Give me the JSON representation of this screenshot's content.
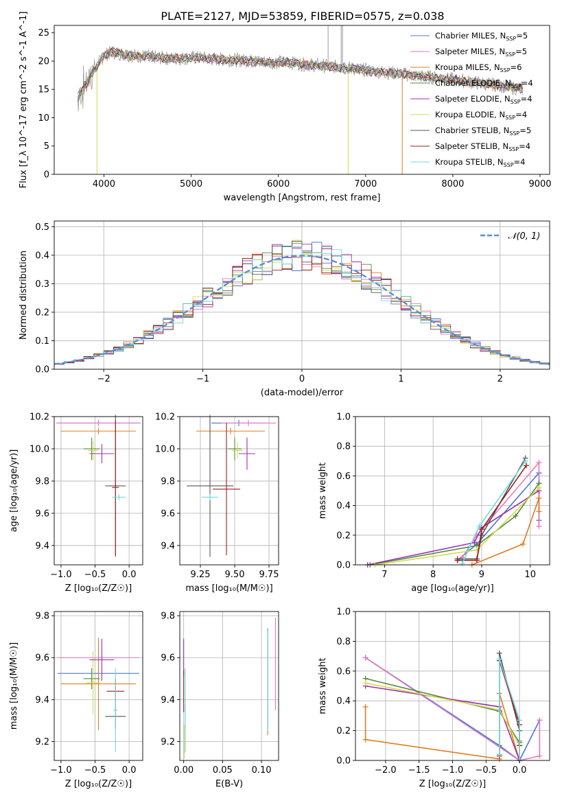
{
  "figure_title": "PLATE=2127, MJD=53859, FIBERID=0575, z=0.038",
  "colors": {
    "Chabrier MILES": "#4878d0",
    "Salpeter MILES": "#e377c2",
    "Kroupa MILES": "#e07b1f",
    "Chabrier ELODIE": "#4a8c3f",
    "Salpeter ELODIE": "#9b2fae",
    "Kroupa ELODIE": "#d7d84a",
    "Chabrier STELIB": "#555555",
    "Salpeter STELIB": "#a01c1c",
    "Kroupa STELIB": "#6fd8e0"
  },
  "chart_data": [
    {
      "type": "line",
      "title": "PLATE=2127, MJD=53859, FIBERID=0575, z=0.038",
      "xlabel": "wavelength [Angstrom, rest frame]",
      "ylabel": "Flux [f_λ 10^-17 erg cm^-2 s^-1 A^-1]",
      "xlim": [
        3430,
        9110
      ],
      "ylim": [
        0,
        26.3
      ],
      "xticks": [
        "4000",
        "5000",
        "6000",
        "7000",
        "8000",
        "9000"
      ],
      "yticks": [
        "0",
        "5",
        "10",
        "15",
        "20",
        "25"
      ],
      "grid": false,
      "legend_position": "top-right",
      "legend": [
        {
          "name": "Chabrier MILES, N",
          "sub": "SSP",
          "suffix": "=5"
        },
        {
          "name": "Salpeter MILES, N",
          "sub": "SSP",
          "suffix": "=5"
        },
        {
          "name": "Kroupa MILES, N",
          "sub": "SSP",
          "suffix": "=6"
        },
        {
          "name": "Chabrier ELODIE, N",
          "sub": "SSP",
          "suffix": "=4"
        },
        {
          "name": "Salpeter ELODIE, N",
          "sub": "SSP",
          "suffix": "=4"
        },
        {
          "name": "Kroupa ELODIE, N",
          "sub": "SSP",
          "suffix": "=4"
        },
        {
          "name": "Chabrier STELIB, N",
          "sub": "SSP",
          "suffix": "=5"
        },
        {
          "name": "Salpeter STELIB, N",
          "sub": "SSP",
          "suffix": "=4"
        },
        {
          "name": "Kroupa STELIB, N",
          "sub": "SSP",
          "suffix": "=4"
        }
      ],
      "continuum_x": [
        3700,
        3850,
        4000,
        4100,
        4300,
        4500,
        4700,
        4900,
        5100,
        5300,
        5500,
        5700,
        5900,
        6100,
        6300,
        6500,
        6700,
        6900,
        7100,
        7300,
        7500,
        7700,
        7900,
        8100,
        8300,
        8500,
        8700,
        8800
      ],
      "continuum_y": [
        13.5,
        17.5,
        21.0,
        21.6,
        21.0,
        20.8,
        20.5,
        20.5,
        20.6,
        20.3,
        20.2,
        20.0,
        19.8,
        19.8,
        19.4,
        19.2,
        18.9,
        18.6,
        18.2,
        17.9,
        17.6,
        17.2,
        16.9,
        16.5,
        16.1,
        15.8,
        15.3,
        15.1
      ],
      "drops": [
        {
          "series": "Kroupa ELODIE",
          "x": 3920
        },
        {
          "series": "Kroupa ELODIE",
          "x": 6800
        },
        {
          "series": "Kroupa MILES",
          "x": 7420
        }
      ]
    },
    {
      "type": "histogram",
      "xlabel": "(data-model)/error",
      "ylabel": "Normed distribution",
      "xlim": [
        -2.5,
        2.5
      ],
      "ylim": [
        0,
        0.52
      ],
      "xticks": [
        "−2",
        "−1",
        "0",
        "1",
        "2"
      ],
      "yticks": [
        "0.0",
        "0.1",
        "0.2",
        "0.3",
        "0.4",
        "0.5"
      ],
      "grid": true,
      "legend_position": "top-right",
      "reference_curve": {
        "label": "𝒩(0, 1)",
        "color": "#5b8fd0",
        "mean": 0,
        "sigma": 1
      },
      "bin_width": 0.1
    },
    {
      "type": "errorbar",
      "xlabel": "Z [log₁₀(Z/Z☉)]",
      "ylabel": "age  [log₁₀(age/yr)]",
      "xlim": [
        -1.1,
        0.2
      ],
      "ylim": [
        9.28,
        10.2
      ],
      "xticks": [
        "−1.0",
        "−0.5",
        "0.0"
      ],
      "yticks": [
        "9.4",
        "9.6",
        "9.8",
        "10.0",
        "10.2"
      ],
      "grid": true,
      "points": [
        {
          "series": "Chabrier MILES",
          "x": -0.45,
          "y": 10.16,
          "xerr": 0.6,
          "yerr": 0.02
        },
        {
          "series": "Salpeter MILES",
          "x": -0.45,
          "y": 10.16,
          "xerr": 0.62,
          "yerr": 0.02
        },
        {
          "series": "Kroupa MILES",
          "x": -0.45,
          "y": 10.11,
          "xerr": 0.55,
          "yerr": 0.02
        },
        {
          "series": "Chabrier ELODIE",
          "x": -0.55,
          "y": 10.0,
          "xerr": 0.12,
          "yerr": 0.07
        },
        {
          "series": "Kroupa ELODIE",
          "x": -0.53,
          "y": 9.99,
          "xerr": 0.08,
          "yerr": 0.06
        },
        {
          "series": "Salpeter ELODIE",
          "x": -0.4,
          "y": 9.97,
          "xerr": 0.18,
          "yerr": 0.06
        },
        {
          "series": "Chabrier STELIB",
          "x": -0.2,
          "y": 9.77,
          "xerr": 0.15,
          "yerr": 0.44
        },
        {
          "series": "Salpeter STELIB",
          "x": -0.2,
          "y": 9.76,
          "xerr": 0.05,
          "yerr": 0.42
        },
        {
          "series": "Kroupa STELIB",
          "x": -0.15,
          "y": 9.7,
          "xerr": 0.1,
          "yerr": 0.02
        }
      ]
    },
    {
      "type": "errorbar",
      "xlabel": "mass [log₁₀(M/M☉)]",
      "xlim": [
        9.1,
        9.82
      ],
      "ylim": [
        9.28,
        10.2
      ],
      "xticks": [
        "9.25",
        "9.50",
        "9.75"
      ],
      "yticks": [
        "9.4",
        "9.6",
        "9.8",
        "10.0",
        "10.2"
      ],
      "grid": true,
      "points": [
        {
          "series": "Chabrier MILES",
          "x": 9.53,
          "y": 10.16,
          "xerr": 0.2,
          "yerr": 0.02
        },
        {
          "series": "Salpeter MILES",
          "x": 9.6,
          "y": 10.16,
          "xerr": 0.2,
          "yerr": 0.02
        },
        {
          "series": "Kroupa MILES",
          "x": 9.47,
          "y": 10.11,
          "xerr": 0.25,
          "yerr": 0.02
        },
        {
          "series": "Chabrier ELODIE",
          "x": 9.5,
          "y": 10.0,
          "xerr": 0.05,
          "yerr": 0.07
        },
        {
          "series": "Kroupa ELODIE",
          "x": 9.52,
          "y": 9.99,
          "xerr": 0.04,
          "yerr": 0.05
        },
        {
          "series": "Salpeter ELODIE",
          "x": 9.59,
          "y": 9.97,
          "xerr": 0.06,
          "yerr": 0.1
        },
        {
          "series": "Chabrier STELIB",
          "x": 9.32,
          "y": 9.77,
          "xerr": 0.17,
          "yerr": 0.44
        },
        {
          "series": "Salpeter STELIB",
          "x": 9.44,
          "y": 9.75,
          "xerr": 0.1,
          "yerr": 0.41
        },
        {
          "series": "Kroupa STELIB",
          "x": 9.32,
          "y": 9.7,
          "xerr": 0.06,
          "yerr": 0.02
        }
      ]
    },
    {
      "type": "line",
      "xlabel": "age  [log₁₀(age/yr)]",
      "ylabel": "mass weight",
      "xlim": [
        6.4,
        10.4
      ],
      "ylim": [
        0,
        1
      ],
      "xticks": [
        "7",
        "8",
        "9",
        "10"
      ],
      "yticks": [
        "0.0",
        "0.2",
        "0.4",
        "0.6",
        "0.8",
        "1.0"
      ],
      "grid": true,
      "series": [
        {
          "name": "Chabrier MILES",
          "x": [
            8.5,
            8.9,
            10.18,
            10.18
          ],
          "y": [
            0.03,
            0.14,
            0.62,
            0.3
          ]
        },
        {
          "name": "Salpeter MILES",
          "x": [
            8.6,
            8.9,
            10.18,
            10.18
          ],
          "y": [
            0.05,
            0.2,
            0.69,
            0.26
          ]
        },
        {
          "name": "Kroupa MILES",
          "x": [
            8.8,
            9.85,
            10.18,
            10.18
          ],
          "y": [
            0.0,
            0.14,
            0.45,
            0.36
          ]
        },
        {
          "name": "Chabrier ELODIE",
          "x": [
            6.7,
            8.9,
            9.7,
            10.18
          ],
          "y": [
            0.0,
            0.13,
            0.33,
            0.55
          ]
        },
        {
          "name": "Salpeter ELODIE",
          "x": [
            6.65,
            8.85,
            9.0,
            10.18
          ],
          "y": [
            0.0,
            0.15,
            0.25,
            0.5
          ]
        },
        {
          "name": "Kroupa ELODIE",
          "x": [
            6.8,
            8.9,
            10.18
          ],
          "y": [
            0.0,
            0.1,
            0.52
          ]
        },
        {
          "name": "Chabrier STELIB",
          "x": [
            8.5,
            8.9,
            9.0,
            9.9
          ],
          "y": [
            0.04,
            0.04,
            0.2,
            0.72
          ]
        },
        {
          "name": "Salpeter STELIB",
          "x": [
            8.5,
            8.9,
            9.0,
            9.92
          ],
          "y": [
            0.03,
            0.03,
            0.24,
            0.67
          ]
        },
        {
          "name": "Kroupa STELIB",
          "x": [
            8.6,
            8.95,
            9.9
          ],
          "y": [
            0.01,
            0.26,
            0.7
          ]
        }
      ]
    },
    {
      "type": "errorbar",
      "xlabel": "Z [log₁₀(Z/Z☉)]",
      "ylabel": "mass [log₁₀(M/M☉)]",
      "xlim": [
        -1.1,
        0.2
      ],
      "ylim": [
        9.11,
        9.82
      ],
      "xticks": [
        "−1.0",
        "−0.5",
        "0.0"
      ],
      "yticks": [
        "9.2",
        "9.4",
        "9.6",
        "9.8"
      ],
      "grid": true,
      "points": [
        {
          "series": "Chabrier MILES",
          "x": -0.45,
          "y": 9.525,
          "xerr": 0.6,
          "yerr": 0.02
        },
        {
          "series": "Salpeter MILES",
          "x": -0.45,
          "y": 9.6,
          "xerr": 0.6,
          "yerr": 0.02
        },
        {
          "series": "Kroupa MILES",
          "x": -0.45,
          "y": 9.475,
          "xerr": 0.55,
          "yerr": 0.22
        },
        {
          "series": "Chabrier ELODIE",
          "x": -0.55,
          "y": 9.5,
          "xerr": 0.12,
          "yerr": 0.05
        },
        {
          "series": "Kroupa ELODIE",
          "x": -0.53,
          "y": 9.48,
          "xerr": 0.1,
          "yerr": 0.15
        },
        {
          "series": "Salpeter ELODIE",
          "x": -0.4,
          "y": 9.59,
          "xerr": 0.18,
          "yerr": 0.1
        },
        {
          "series": "Chabrier STELIB",
          "x": -0.2,
          "y": 9.32,
          "xerr": 0.15,
          "yerr": 0.06
        },
        {
          "series": "Salpeter STELIB",
          "x": -0.2,
          "y": 9.44,
          "xerr": 0.13,
          "yerr": 0.06
        },
        {
          "series": "Kroupa STELIB",
          "x": -0.2,
          "y": 9.35,
          "xerr": 0.03,
          "yerr": 0.2
        }
      ]
    },
    {
      "type": "errorbar",
      "xlabel": "E(B-V)",
      "xlim": [
        -0.005,
        0.122
      ],
      "ylim": [
        9.11,
        9.82
      ],
      "xticks": [
        "0.00",
        "0.05",
        "0.10"
      ],
      "yticks": [
        "9.2",
        "9.4",
        "9.6",
        "9.8"
      ],
      "grid": true,
      "points": [
        {
          "series": "Salpeter ELODIE",
          "x": 0.0,
          "y": 9.6,
          "xerr": 0.0,
          "yerr": 0.09
        },
        {
          "series": "Salpeter STELIB",
          "x": 0.0,
          "y": 9.44,
          "xerr": 0.0,
          "yerr": 0.1
        },
        {
          "series": "Chabrier STELIB",
          "x": 0.002,
          "y": 9.32,
          "xerr": 0.0,
          "yerr": 0.06
        },
        {
          "series": "Kroupa STELIB",
          "x": 0.002,
          "y": 9.35,
          "xerr": 0.0,
          "yerr": 0.2
        },
        {
          "series": "Kroupa ELODIE",
          "x": 0.001,
          "y": 9.2,
          "xerr": 0.0,
          "yerr": 0.08
        },
        {
          "series": "Kroupa MILES",
          "x": 0.108,
          "y": 9.47,
          "xerr": 0.0,
          "yerr": 0.24
        },
        {
          "series": "Chabrier MILES",
          "x": 0.108,
          "y": 9.5,
          "xerr": 0.0,
          "yerr": 0.24
        },
        {
          "series": "Kroupa STELIB",
          "x": 0.108,
          "y": 9.49,
          "xerr": 0.0,
          "yerr": 0.24
        },
        {
          "series": "Salpeter MILES",
          "x": 0.118,
          "y": 9.57,
          "xerr": 0.0,
          "yerr": 0.22
        }
      ]
    },
    {
      "type": "line",
      "xlabel": "Z [log₁₀(Z/Z☉)]",
      "ylabel": "mass weight",
      "xlim": [
        -2.45,
        0.45
      ],
      "ylim": [
        0,
        1
      ],
      "xticks": [
        "−2.0",
        "−1.5",
        "−1.0",
        "−0.5",
        "0.0"
      ],
      "yticks": [
        "0.0",
        "0.2",
        "0.4",
        "0.6",
        "0.8",
        "1.0"
      ],
      "grid": true,
      "series": [
        {
          "name": "Chabrier MILES",
          "x": [
            -2.3,
            -0.3,
            0.0,
            0.3
          ],
          "y": [
            0.69,
            0.1,
            0.0,
            0.27
          ]
        },
        {
          "name": "Salpeter MILES",
          "x": [
            -2.3,
            0.0,
            0.3,
            0.3
          ],
          "y": [
            0.69,
            0.0,
            0.03,
            0.27
          ]
        },
        {
          "name": "Kroupa MILES",
          "x": [
            -2.3,
            -2.3,
            -0.3,
            -0.3,
            0.0,
            0.0
          ],
          "y": [
            0.36,
            0.14,
            0.01,
            0.45,
            0.0,
            0.13
          ]
        },
        {
          "name": "Chabrier ELODIE",
          "x": [
            -2.3,
            -0.3,
            0.0
          ],
          "y": [
            0.55,
            0.33,
            0.12
          ]
        },
        {
          "name": "Salpeter ELODIE",
          "x": [
            -2.3,
            -0.3,
            0.0
          ],
          "y": [
            0.5,
            0.36,
            0.0
          ]
        },
        {
          "name": "Kroupa ELODIE",
          "x": [
            -2.3,
            -0.3,
            0.0
          ],
          "y": [
            0.52,
            0.34,
            0.1
          ]
        },
        {
          "name": "Chabrier STELIB",
          "x": [
            -0.3,
            -0.3,
            0.0,
            0.0
          ],
          "y": [
            0.04,
            0.72,
            0.2,
            0.1
          ]
        },
        {
          "name": "Salpeter STELIB",
          "x": [
            -0.3,
            -0.3,
            0.0,
            0.0
          ],
          "y": [
            0.03,
            0.67,
            0.24,
            0.1
          ]
        },
        {
          "name": "Kroupa STELIB",
          "x": [
            -0.3,
            -0.3,
            0.0,
            0.0
          ],
          "y": [
            0.04,
            0.68,
            0.27,
            0.0
          ]
        }
      ]
    }
  ]
}
